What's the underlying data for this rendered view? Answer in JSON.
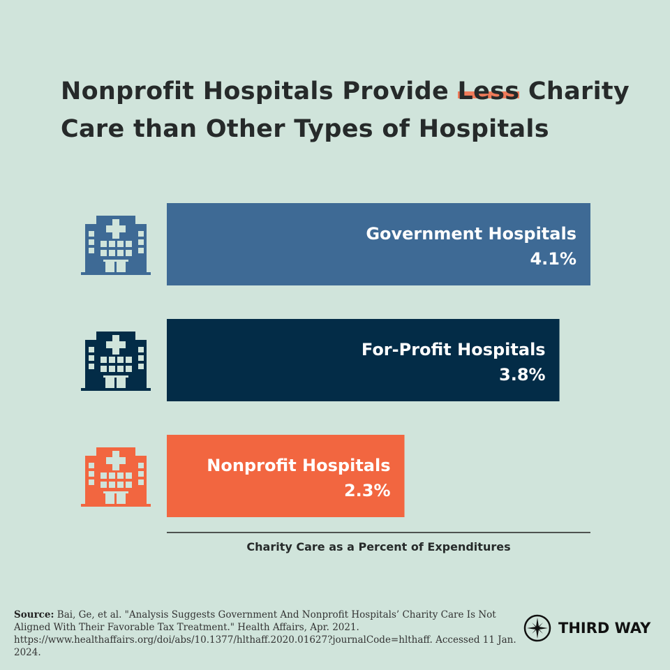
{
  "title": {
    "before": "Nonprofit Hospitals Provide ",
    "highlight": "Less",
    "after": " Charity Care than Other Types of Hospitals",
    "highlight_color": "#ef7b5a"
  },
  "chart_data": {
    "type": "bar",
    "orientation": "horizontal",
    "categories": [
      "Government Hospitals",
      "For-Profit Hospitals",
      "Nonprofit Hospitals"
    ],
    "values": [
      4.1,
      3.8,
      2.3
    ],
    "value_labels": [
      "4.1%",
      "3.8%",
      "2.3%"
    ],
    "colors": [
      "#3e6a95",
      "#032c47",
      "#f26640"
    ],
    "icon": "hospital-icon",
    "xlabel": "Charity Care as a Percent of Expenditures",
    "xlim": [
      0,
      4.1
    ],
    "grid": false
  },
  "source": {
    "label": "Source:",
    "text": " Bai, Ge, et al. \"Analysis Suggests Government And Nonprofit Hospitals’ Charity Care Is Not Aligned With Their Favorable Tax Treatment.\" Health Affairs, Apr. 2021. https://www.healthaffairs.org/doi/abs/10.1377/hlthaff.2020.01627?journalCode=hlthaff. Accessed 11 Jan. 2024."
  },
  "logo": {
    "text": "THIRD WAY",
    "icon": "compass-star-icon"
  }
}
